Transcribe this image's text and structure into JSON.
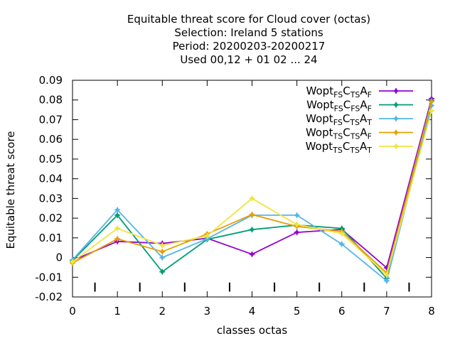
{
  "chart_data": {
    "type": "line",
    "title_lines": [
      "Equitable threat score  for Cloud cover (octas)",
      "Selection: Ireland      5 stations",
      "Period: 20200203-20200217",
      "Used  00,12  + 01 02 ... 24"
    ],
    "xlabel": "classes octas",
    "ylabel": "Equitable threat score",
    "xlim": [
      0,
      8
    ],
    "ylim": [
      -0.02,
      0.09
    ],
    "x_ticks": [
      "0",
      "1",
      "2",
      "3",
      "4",
      "5",
      "6",
      "7",
      "8"
    ],
    "y_ticks": [
      "-0.02",
      "-0.01",
      "0",
      "0.01",
      "0.02",
      "0.03",
      "0.04",
      "0.05",
      "0.06",
      "0.07",
      "0.08",
      "0.09"
    ],
    "grid": false,
    "legend_position": "top-right",
    "x": [
      0,
      1,
      2,
      3,
      4,
      5,
      6,
      7,
      8
    ],
    "series": [
      {
        "name_parts": [
          [
            "Wopt",
            ""
          ],
          [
            "FS",
            "sub"
          ],
          [
            "C",
            ""
          ],
          [
            "TS",
            "sub"
          ],
          [
            "A",
            ""
          ],
          [
            "F",
            "sub"
          ]
        ],
        "color": "#9400d3",
        "values": [
          -0.0015,
          0.0082,
          0.0072,
          0.0098,
          0.0017,
          0.0128,
          0.0143,
          -0.0052,
          0.0807
        ]
      },
      {
        "name_parts": [
          [
            "Wopt",
            ""
          ],
          [
            "FS",
            "sub"
          ],
          [
            "C",
            ""
          ],
          [
            "FS",
            "sub"
          ],
          [
            "A",
            ""
          ],
          [
            "F",
            "sub"
          ]
        ],
        "color": "#009e73",
        "values": [
          -0.0015,
          0.0215,
          -0.0072,
          0.0092,
          0.0142,
          0.0165,
          0.0148,
          -0.0105,
          0.0798
        ]
      },
      {
        "name_parts": [
          [
            "Wopt",
            ""
          ],
          [
            "FS",
            "sub"
          ],
          [
            "C",
            ""
          ],
          [
            "TS",
            "sub"
          ],
          [
            "A",
            ""
          ],
          [
            "T",
            "sub"
          ]
        ],
        "color": "#56b4e9",
        "values": [
          -0.0012,
          0.0242,
          0.0,
          0.0095,
          0.0215,
          0.0215,
          0.0068,
          -0.0118,
          0.0772
        ]
      },
      {
        "name_parts": [
          [
            "Wopt",
            ""
          ],
          [
            "TS",
            "sub"
          ],
          [
            "C",
            ""
          ],
          [
            "TS",
            "sub"
          ],
          [
            "A",
            ""
          ],
          [
            "F",
            "sub"
          ]
        ],
        "color": "#e69f00",
        "values": [
          -0.0028,
          0.0095,
          0.003,
          0.012,
          0.0218,
          0.0158,
          0.0132,
          -0.0078,
          0.0792
        ]
      },
      {
        "name_parts": [
          [
            "Wopt",
            ""
          ],
          [
            "TS",
            "sub"
          ],
          [
            "C",
            ""
          ],
          [
            "TS",
            "sub"
          ],
          [
            "A",
            ""
          ],
          [
            "T",
            "sub"
          ]
        ],
        "color": "#f0e442",
        "values": [
          -0.0022,
          0.0148,
          0.0062,
          0.011,
          0.03,
          0.0168,
          0.0122,
          -0.0088,
          0.0745
        ]
      }
    ]
  }
}
